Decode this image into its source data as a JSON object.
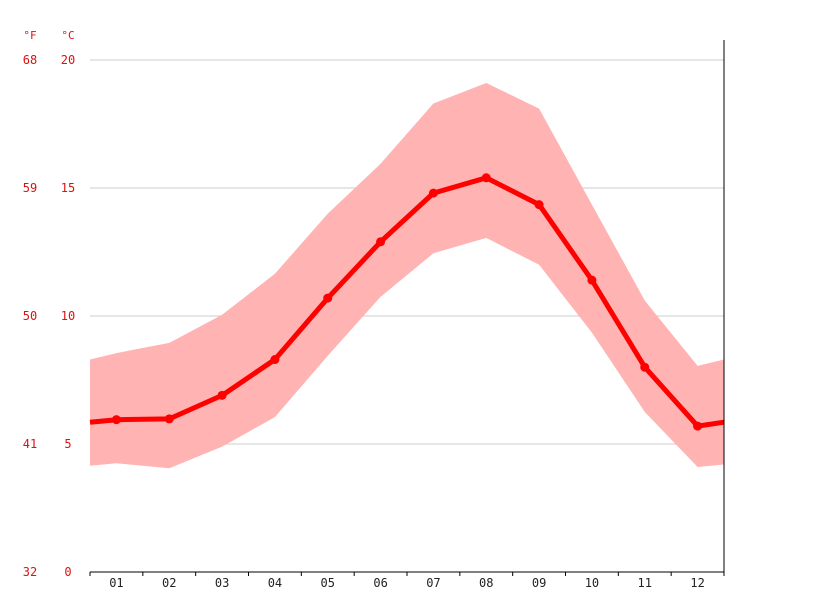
{
  "chart_data": {
    "type": "line",
    "title": "",
    "xlabel": "",
    "ylabel": "",
    "units": {
      "left_outer": "°F",
      "left_inner": "°C"
    },
    "categories": [
      "01",
      "02",
      "03",
      "04",
      "05",
      "06",
      "07",
      "08",
      "09",
      "10",
      "11",
      "12"
    ],
    "ylim": [
      0,
      20
    ],
    "y_ticks_c": [
      "0",
      "5",
      "10",
      "15",
      "20"
    ],
    "y_ticks_f": [
      "32",
      "41",
      "50",
      "59",
      "68"
    ],
    "series": [
      {
        "values": [
          5.95,
          5.98,
          6.9,
          8.3,
          10.7,
          12.9,
          14.8,
          15.4,
          14.35,
          11.4,
          8.0,
          5.7
        ]
      }
    ],
    "band": {
      "lower": [
        4.25,
        4.05,
        4.9,
        6.05,
        8.45,
        10.75,
        12.45,
        13.05,
        12.0,
        9.35,
        6.25,
        4.1
      ],
      "upper": [
        8.55,
        8.95,
        10.05,
        11.65,
        14.0,
        15.95,
        18.3,
        19.1,
        18.1,
        14.35,
        10.6,
        8.05
      ]
    },
    "edge_values": {
      "left": {
        "value": 5.85,
        "lower": 4.15,
        "upper": 8.3
      },
      "right": {
        "value": 5.85,
        "lower": 4.2,
        "upper": 8.3
      }
    },
    "grid": true,
    "colors": {
      "line": "#ff0000",
      "band": "#ffb3b3",
      "grid": "#cccccc",
      "label": "#e01010"
    }
  }
}
